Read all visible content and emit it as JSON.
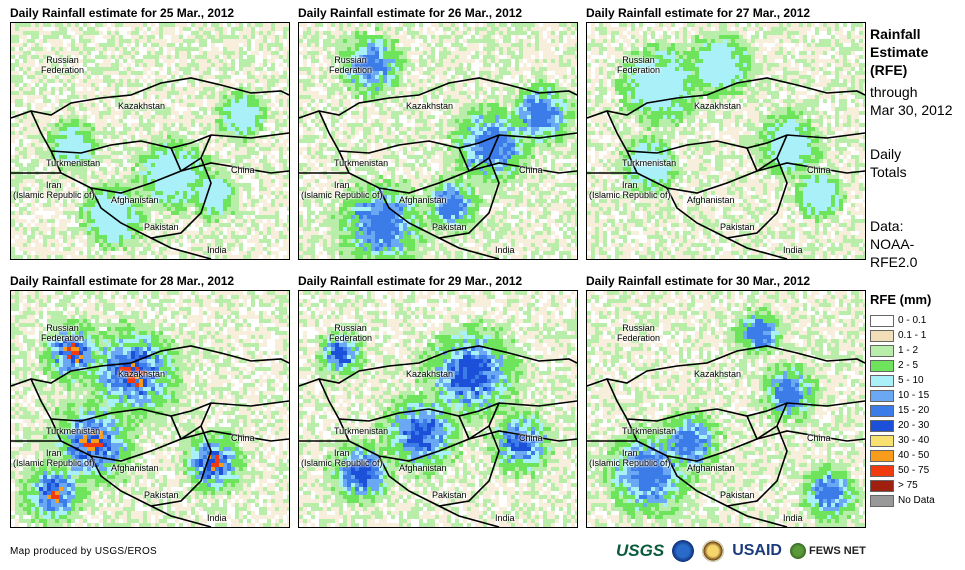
{
  "panels": [
    {
      "title": "Daily Rainfall estimate for 25 Mar., 2012",
      "intensity": 1
    },
    {
      "title": "Daily Rainfall estimate for 26 Mar., 2012",
      "intensity": 2
    },
    {
      "title": "Daily Rainfall estimate for 27 Mar., 2012",
      "intensity": 1
    },
    {
      "title": "Daily Rainfall estimate for 28 Mar., 2012",
      "intensity": 4
    },
    {
      "title": "Daily Rainfall estimate for 29 Mar., 2012",
      "intensity": 3
    },
    {
      "title": "Daily Rainfall estimate for 30 Mar., 2012",
      "intensity": 2
    }
  ],
  "countries": {
    "russia": "Russian\nFederation",
    "kazakhstan": "Kazakhstan",
    "turkmenistan": "Turkmenistan",
    "iran": "Iran\n(Islamic Republic of)",
    "afghanistan": "Afghanistan",
    "pakistan": "Pakistan",
    "china": "China",
    "india": "India"
  },
  "side": {
    "heading": "Rainfall\nEstimate\n(RFE)",
    "through": "through\nMar 30, 2012",
    "daily": "Daily\nTotals",
    "source": "Data:\nNOAA-\nRFE2.0"
  },
  "legend": {
    "title": "RFE (mm)",
    "items": [
      {
        "label": "0 - 0.1",
        "color": "#ffffff"
      },
      {
        "label": "0.1 - 1",
        "color": "#f2dfb8"
      },
      {
        "label": "1 - 2",
        "color": "#b8eeaa"
      },
      {
        "label": "2 - 5",
        "color": "#6ee45c"
      },
      {
        "label": "5 - 10",
        "color": "#aaf0f8"
      },
      {
        "label": "10 - 15",
        "color": "#6aa8f4"
      },
      {
        "label": "15 - 20",
        "color": "#3c7ce8"
      },
      {
        "label": "20 - 30",
        "color": "#1c50d8"
      },
      {
        "label": "30 - 40",
        "color": "#f8e070"
      },
      {
        "label": "40 - 50",
        "color": "#f89c1c"
      },
      {
        "label": "50 - 75",
        "color": "#f03a10"
      },
      {
        "label": "> 75",
        "color": "#a02010"
      },
      {
        "label": "No Data",
        "color": "#999999"
      }
    ]
  },
  "footer": {
    "credit": "Map produced by USGS/EROS",
    "logos": [
      "USGS",
      "NOAA",
      "DOI",
      "USAID",
      "FEWS NET"
    ]
  }
}
